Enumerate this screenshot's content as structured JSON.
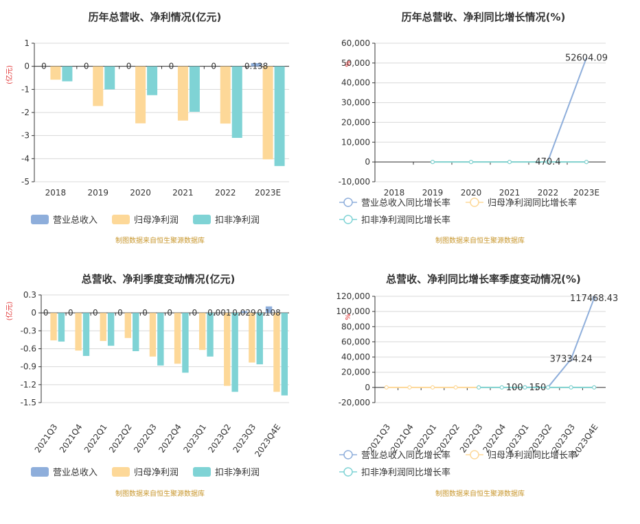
{
  "colors": {
    "revenue": "#8eaedb",
    "parent": "#fdd898",
    "deducted": "#7fd3d5",
    "axis": "#333333",
    "grid": "#d8d8d8",
    "source": "#c8972e",
    "unit_red": "#e03030"
  },
  "chart_data": [
    {
      "type": "bar",
      "title": "历年总营收、净利情况(亿元)",
      "ylabel": "(亿元)",
      "ylim": [
        -5,
        1
      ],
      "yticks": [
        "1",
        "0",
        "-1",
        "-2",
        "-3",
        "-4",
        "-5"
      ],
      "categories": [
        "2018",
        "2019",
        "2020",
        "2021",
        "2022",
        "2023E"
      ],
      "series": [
        {
          "name": "营业总收入",
          "values": [
            0,
            0,
            0,
            0,
            0,
            0.138
          ]
        },
        {
          "name": "归母净利润",
          "values": [
            -0.58,
            -1.72,
            -2.47,
            -2.35,
            -2.48,
            -4.03
          ]
        },
        {
          "name": "扣非净利润",
          "values": [
            -0.65,
            -1.0,
            -1.25,
            -1.97,
            -3.1,
            -4.32
          ]
        }
      ],
      "data_labels": [
        "0",
        "0",
        "0",
        "0",
        "0",
        "0.138"
      ],
      "source": "制图数据来自恒生聚源数据库"
    },
    {
      "type": "line",
      "title": "历年总营收、净利同比增长情况(%)",
      "ylim": [
        -10000,
        60000
      ],
      "yticks": [
        "60,000",
        "50,000",
        "40,000",
        "30,000",
        "20,000",
        "10,000",
        "0",
        "-10,000"
      ],
      "categories": [
        "2018",
        "2019",
        "2020",
        "2021",
        "2022",
        "2023E"
      ],
      "series": [
        {
          "name": "营业总收入同比增长率",
          "values": [
            null,
            null,
            null,
            null,
            null,
            null
          ]
        },
        {
          "name": "归母净利润同比增长率",
          "values": [
            null,
            0,
            0,
            0,
            0,
            0
          ]
        },
        {
          "name": "扣非净利润同比增长率",
          "values": [
            null,
            0,
            0,
            0,
            0,
            0
          ]
        }
      ],
      "extra_line": {
        "points": [
          [
            4,
            470.4
          ],
          [
            5,
            52604.09
          ]
        ]
      },
      "data_labels": [
        {
          "text": "470.4",
          "x": 4,
          "y": 0
        },
        {
          "text": "52604.09",
          "x": 5,
          "y": 52604.09
        }
      ],
      "source": "制图数据来自恒生聚源数据库"
    },
    {
      "type": "bar",
      "title": "总营收、净利季度变动情况(亿元)",
      "ylabel": "(亿元)",
      "ylim": [
        -1.5,
        0.3
      ],
      "yticks": [
        "0.3",
        "0",
        "-0.3",
        "-0.6",
        "-0.9",
        "-1.2",
        "-1.5"
      ],
      "categories": [
        "2021Q3",
        "2021Q4",
        "2022Q1",
        "2022Q2",
        "2022Q3",
        "2022Q4",
        "2023Q1",
        "2023Q2",
        "2023Q3",
        "2023Q4E"
      ],
      "series": [
        {
          "name": "营业总收入",
          "values": [
            0,
            0,
            0,
            0,
            0,
            0,
            0,
            0.001,
            0.029,
            0.108
          ]
        },
        {
          "name": "归母净利润",
          "values": [
            -0.46,
            -0.63,
            -0.47,
            -0.42,
            -0.73,
            -0.85,
            -0.62,
            -1.22,
            -0.83,
            -1.32
          ]
        },
        {
          "name": "扣非净利润",
          "values": [
            -0.48,
            -0.72,
            -0.55,
            -0.64,
            -0.88,
            -1.0,
            -0.73,
            -1.32,
            -0.86,
            -1.38
          ]
        }
      ],
      "data_labels": [
        "0",
        "0",
        "0",
        "0",
        "0",
        "0",
        "0",
        "0.001",
        "0.029",
        "0.108"
      ],
      "source": "制图数据来自恒生聚源数据库"
    },
    {
      "type": "line",
      "title": "总营收、净利同比增长率季度变动情况(%)",
      "ylim": [
        -20000,
        120000
      ],
      "yticks": [
        "120,000",
        "100,000",
        "80,000",
        "60,000",
        "40,000",
        "20,000",
        "0",
        "-20,000"
      ],
      "categories": [
        "2021Q3",
        "2021Q4",
        "2022Q1",
        "2022Q2",
        "2022Q3",
        "2022Q4",
        "2023Q1",
        "2023Q2",
        "2023Q3",
        "2023Q4E"
      ],
      "series": [
        {
          "name": "营业总收入同比增长率",
          "values": [
            null,
            null,
            null,
            null,
            null,
            null,
            100,
            150,
            37334.24,
            117468.43
          ]
        },
        {
          "name": "归母净利润同比增长率",
          "values": [
            0,
            0,
            0,
            0,
            0,
            0,
            0,
            0,
            0,
            0
          ]
        },
        {
          "name": "扣非净利润同比增长率",
          "values": [
            null,
            null,
            null,
            null,
            0,
            0,
            0,
            0,
            0,
            0
          ]
        }
      ],
      "data_labels": [
        {
          "text": "100",
          "x": 5.55,
          "y": 0
        },
        {
          "text": "150",
          "x": 6.55,
          "y": 0
        },
        {
          "text": "37334.24",
          "x": 8,
          "y": 37334.24
        },
        {
          "text": "117468.43",
          "x": 9,
          "y": 117468.43
        }
      ],
      "source": "制图数据来自恒生聚源数据库"
    }
  ]
}
